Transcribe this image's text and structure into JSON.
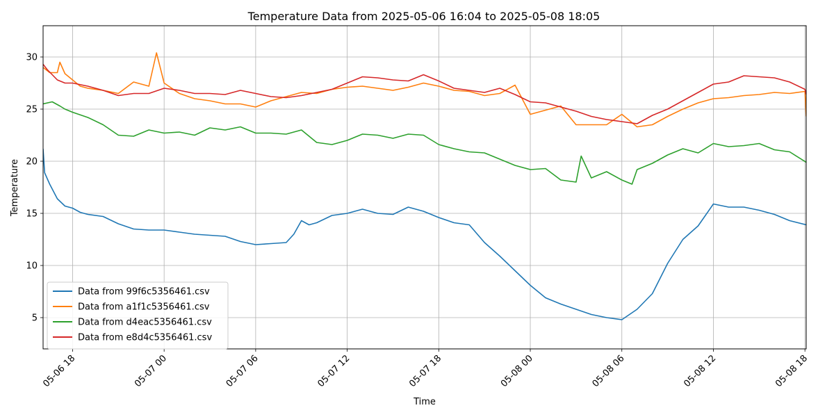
{
  "chart_data": {
    "type": "line",
    "title": "Temperature Data from 2025-05-06 16:04 to 2025-05-08 18:05",
    "xlabel": "Time",
    "ylabel": "Temperature",
    "xlim": [
      "2025-05-06 16:04",
      "2025-05-08 18:05"
    ],
    "ylim": [
      2,
      33
    ],
    "grid": true,
    "legend_position": "lower-left",
    "x_ticks": [
      {
        "t": "2025-05-06 18:00",
        "label": "05-06 18"
      },
      {
        "t": "2025-05-07 00:00",
        "label": "05-07 00"
      },
      {
        "t": "2025-05-07 06:00",
        "label": "05-07 06"
      },
      {
        "t": "2025-05-07 12:00",
        "label": "05-07 12"
      },
      {
        "t": "2025-05-07 18:00",
        "label": "05-07 18"
      },
      {
        "t": "2025-05-08 00:00",
        "label": "05-08 00"
      },
      {
        "t": "2025-05-08 06:00",
        "label": "05-08 06"
      },
      {
        "t": "2025-05-08 12:00",
        "label": "05-08 12"
      },
      {
        "t": "2025-05-08 18:00",
        "label": "05-08 18"
      }
    ],
    "y_ticks": [
      5,
      10,
      15,
      20,
      25,
      30
    ],
    "series": [
      {
        "name": "Data from 99f6c5356461.csv",
        "color": "#1f77b4",
        "x": [
          "2025-05-06 16:04",
          "2025-05-06 16:10",
          "2025-05-06 16:30",
          "2025-05-06 17:00",
          "2025-05-06 17:30",
          "2025-05-06 18:00",
          "2025-05-06 18:30",
          "2025-05-06 19:00",
          "2025-05-06 20:00",
          "2025-05-06 21:00",
          "2025-05-06 22:00",
          "2025-05-06 23:00",
          "2025-05-07 00:00",
          "2025-05-07 01:00",
          "2025-05-07 02:00",
          "2025-05-07 03:00",
          "2025-05-07 04:00",
          "2025-05-07 05:00",
          "2025-05-07 06:00",
          "2025-05-07 07:00",
          "2025-05-07 08:00",
          "2025-05-07 08:30",
          "2025-05-07 09:00",
          "2025-05-07 09:30",
          "2025-05-07 10:00",
          "2025-05-07 11:00",
          "2025-05-07 12:00",
          "2025-05-07 13:00",
          "2025-05-07 14:00",
          "2025-05-07 15:00",
          "2025-05-07 16:00",
          "2025-05-07 17:00",
          "2025-05-07 18:00",
          "2025-05-07 19:00",
          "2025-05-07 20:00",
          "2025-05-07 21:00",
          "2025-05-07 22:00",
          "2025-05-07 23:00",
          "2025-05-08 00:00",
          "2025-05-08 01:00",
          "2025-05-08 02:00",
          "2025-05-08 03:00",
          "2025-05-08 04:00",
          "2025-05-08 05:00",
          "2025-05-08 06:00",
          "2025-05-08 07:00",
          "2025-05-08 08:00",
          "2025-05-08 09:00",
          "2025-05-08 10:00",
          "2025-05-08 11:00",
          "2025-05-08 12:00",
          "2025-05-08 13:00",
          "2025-05-08 14:00",
          "2025-05-08 15:00",
          "2025-05-08 16:00",
          "2025-05-08 17:00",
          "2025-05-08 18:05"
        ],
        "y": [
          21.2,
          18.9,
          17.8,
          16.4,
          15.7,
          15.5,
          15.1,
          14.9,
          14.7,
          14.0,
          13.5,
          13.4,
          13.4,
          13.2,
          13.0,
          12.9,
          12.8,
          12.3,
          12.0,
          12.1,
          12.2,
          13.0,
          14.3,
          13.9,
          14.1,
          14.8,
          15.0,
          15.4,
          15.0,
          14.9,
          15.6,
          15.2,
          14.6,
          14.1,
          13.9,
          12.2,
          10.9,
          9.5,
          8.1,
          6.9,
          6.3,
          5.8,
          5.3,
          5.0,
          4.8,
          5.8,
          7.3,
          10.2,
          12.5,
          13.8,
          15.9,
          15.6,
          15.6,
          15.3,
          14.9,
          14.3,
          13.9
        ]
      },
      {
        "name": "Data from a1f1c5356461.csv",
        "color": "#ff7f0e",
        "x": [
          "2025-05-06 16:04",
          "2025-05-06 16:30",
          "2025-05-06 17:00",
          "2025-05-06 17:10",
          "2025-05-06 17:30",
          "2025-05-06 18:00",
          "2025-05-06 18:30",
          "2025-05-06 19:00",
          "2025-05-06 20:00",
          "2025-05-06 21:00",
          "2025-05-06 22:00",
          "2025-05-06 23:00",
          "2025-05-06 23:30",
          "2025-05-07 00:00",
          "2025-05-07 01:00",
          "2025-05-07 02:00",
          "2025-05-07 03:00",
          "2025-05-07 04:00",
          "2025-05-07 05:00",
          "2025-05-07 06:00",
          "2025-05-07 07:00",
          "2025-05-07 08:00",
          "2025-05-07 09:00",
          "2025-05-07 10:00",
          "2025-05-07 11:00",
          "2025-05-07 12:00",
          "2025-05-07 13:00",
          "2025-05-07 14:00",
          "2025-05-07 15:00",
          "2025-05-07 16:00",
          "2025-05-07 17:00",
          "2025-05-07 18:00",
          "2025-05-07 19:00",
          "2025-05-07 20:00",
          "2025-05-07 21:00",
          "2025-05-07 22:00",
          "2025-05-07 23:00",
          "2025-05-08 00:00",
          "2025-05-08 01:00",
          "2025-05-08 02:00",
          "2025-05-08 03:00",
          "2025-05-08 04:00",
          "2025-05-08 05:00",
          "2025-05-08 06:00",
          "2025-05-08 07:00",
          "2025-05-08 08:00",
          "2025-05-08 09:00",
          "2025-05-08 10:00",
          "2025-05-08 11:00",
          "2025-05-08 12:00",
          "2025-05-08 13:00",
          "2025-05-08 14:00",
          "2025-05-08 15:00",
          "2025-05-08 16:00",
          "2025-05-08 17:00",
          "2025-05-08 18:00",
          "2025-05-08 18:05"
        ],
        "y": [
          29.0,
          28.5,
          28.5,
          29.5,
          28.4,
          27.8,
          27.2,
          27.0,
          26.8,
          26.5,
          27.6,
          27.2,
          30.4,
          27.5,
          26.5,
          26.0,
          25.8,
          25.5,
          25.5,
          25.2,
          25.8,
          26.2,
          26.6,
          26.5,
          26.9,
          27.1,
          27.2,
          27.0,
          26.8,
          27.1,
          27.5,
          27.2,
          26.8,
          26.7,
          26.3,
          26.5,
          27.3,
          24.5,
          24.9,
          25.3,
          23.5,
          23.5,
          23.5,
          24.5,
          23.3,
          23.5,
          24.3,
          25.0,
          25.6,
          26.0,
          26.1,
          26.3,
          26.4,
          26.6,
          26.5,
          26.7,
          24.3
        ]
      },
      {
        "name": "Data from d4eac5356461.csv",
        "color": "#2ca02c",
        "x": [
          "2025-05-06 16:04",
          "2025-05-06 16:40",
          "2025-05-06 17:10",
          "2025-05-06 17:30",
          "2025-05-06 18:00",
          "2025-05-06 19:00",
          "2025-05-06 20:00",
          "2025-05-06 21:00",
          "2025-05-06 22:00",
          "2025-05-06 23:00",
          "2025-05-07 00:00",
          "2025-05-07 01:00",
          "2025-05-07 02:00",
          "2025-05-07 03:00",
          "2025-05-07 04:00",
          "2025-05-07 05:00",
          "2025-05-07 06:00",
          "2025-05-07 07:00",
          "2025-05-07 08:00",
          "2025-05-07 09:00",
          "2025-05-07 10:00",
          "2025-05-07 11:00",
          "2025-05-07 12:00",
          "2025-05-07 13:00",
          "2025-05-07 14:00",
          "2025-05-07 15:00",
          "2025-05-07 16:00",
          "2025-05-07 17:00",
          "2025-05-07 18:00",
          "2025-05-07 19:00",
          "2025-05-07 20:00",
          "2025-05-07 21:00",
          "2025-05-07 22:00",
          "2025-05-07 23:00",
          "2025-05-08 00:00",
          "2025-05-08 01:00",
          "2025-05-08 02:00",
          "2025-05-08 03:00",
          "2025-05-08 03:20",
          "2025-05-08 04:00",
          "2025-05-08 05:00",
          "2025-05-08 06:00",
          "2025-05-08 06:40",
          "2025-05-08 07:00",
          "2025-05-08 08:00",
          "2025-05-08 09:00",
          "2025-05-08 10:00",
          "2025-05-08 11:00",
          "2025-05-08 12:00",
          "2025-05-08 13:00",
          "2025-05-08 14:00",
          "2025-05-08 15:00",
          "2025-05-08 16:00",
          "2025-05-08 17:00",
          "2025-05-08 18:05"
        ],
        "y": [
          25.5,
          25.7,
          25.3,
          25.0,
          24.7,
          24.2,
          23.5,
          22.5,
          22.4,
          23.0,
          22.7,
          22.8,
          22.5,
          23.2,
          23.0,
          23.3,
          22.7,
          22.7,
          22.6,
          23.0,
          21.8,
          21.6,
          22.0,
          22.6,
          22.5,
          22.2,
          22.6,
          22.5,
          21.6,
          21.2,
          20.9,
          20.8,
          20.2,
          19.6,
          19.2,
          19.3,
          18.2,
          18.0,
          20.5,
          18.4,
          19.0,
          18.2,
          17.8,
          19.2,
          19.8,
          20.6,
          21.2,
          20.8,
          21.7,
          21.4,
          21.5,
          21.7,
          21.1,
          20.9,
          19.9
        ]
      },
      {
        "name": "Data from e8d4c5356461.csv",
        "color": "#d62728",
        "x": [
          "2025-05-06 16:04",
          "2025-05-06 16:20",
          "2025-05-06 17:00",
          "2025-05-06 17:30",
          "2025-05-06 18:00",
          "2025-05-06 19:00",
          "2025-05-06 20:00",
          "2025-05-06 21:00",
          "2025-05-06 22:00",
          "2025-05-06 23:00",
          "2025-05-07 00:00",
          "2025-05-07 01:00",
          "2025-05-07 02:00",
          "2025-05-07 03:00",
          "2025-05-07 04:00",
          "2025-05-07 05:00",
          "2025-05-07 06:00",
          "2025-05-07 07:00",
          "2025-05-07 08:00",
          "2025-05-07 09:00",
          "2025-05-07 10:00",
          "2025-05-07 11:00",
          "2025-05-07 12:00",
          "2025-05-07 13:00",
          "2025-05-07 14:00",
          "2025-05-07 15:00",
          "2025-05-07 16:00",
          "2025-05-07 17:00",
          "2025-05-07 18:00",
          "2025-05-07 19:00",
          "2025-05-07 20:00",
          "2025-05-07 21:00",
          "2025-05-07 22:00",
          "2025-05-07 23:00",
          "2025-05-08 00:00",
          "2025-05-08 01:00",
          "2025-05-08 02:00",
          "2025-05-08 03:00",
          "2025-05-08 04:00",
          "2025-05-08 05:00",
          "2025-05-08 06:00",
          "2025-05-08 07:00",
          "2025-05-08 08:00",
          "2025-05-08 09:00",
          "2025-05-08 10:00",
          "2025-05-08 11:00",
          "2025-05-08 12:00",
          "2025-05-08 13:00",
          "2025-05-08 14:00",
          "2025-05-08 15:00",
          "2025-05-08 16:00",
          "2025-05-08 17:00",
          "2025-05-08 18:00",
          "2025-05-08 18:05"
        ],
        "y": [
          29.3,
          28.8,
          27.8,
          27.5,
          27.5,
          27.2,
          26.8,
          26.3,
          26.5,
          26.5,
          27.0,
          26.8,
          26.5,
          26.5,
          26.4,
          26.8,
          26.5,
          26.2,
          26.1,
          26.3,
          26.6,
          26.9,
          27.5,
          28.1,
          28.0,
          27.8,
          27.7,
          28.3,
          27.7,
          27.0,
          26.8,
          26.6,
          27.0,
          26.4,
          25.7,
          25.6,
          25.2,
          24.8,
          24.3,
          24.0,
          23.8,
          23.6,
          24.4,
          25.0,
          25.8,
          26.6,
          27.4,
          27.6,
          28.2,
          28.1,
          28.0,
          27.6,
          26.9,
          26.4
        ]
      }
    ]
  }
}
